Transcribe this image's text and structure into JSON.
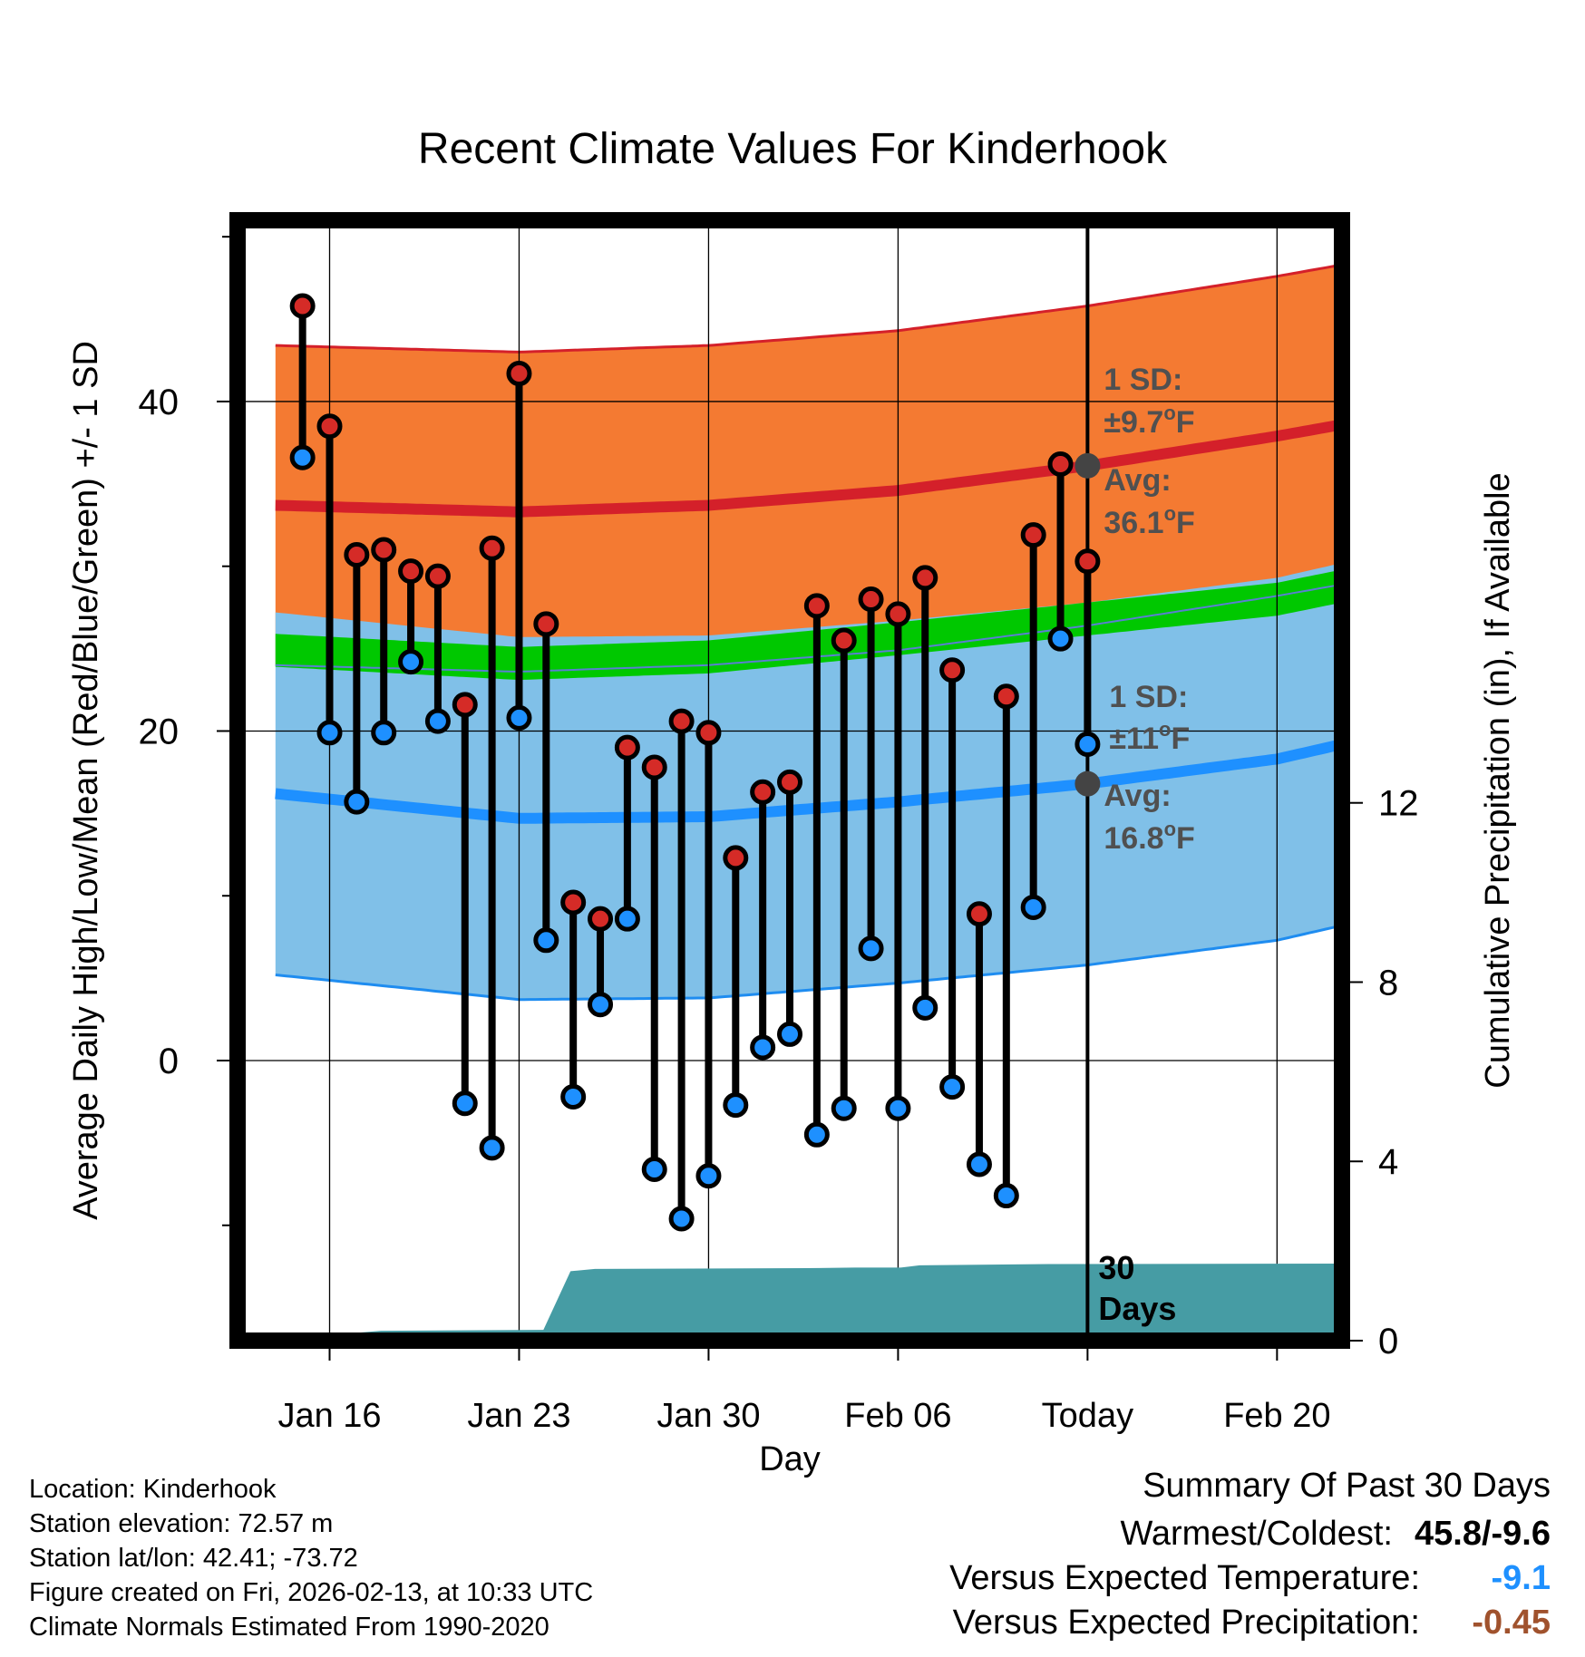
{
  "chart_data": {
    "type": "climate_range",
    "title": "Recent Climate Values For Kinderhook",
    "xlabel": "Day",
    "ylabel": "Average Daily High/Low/Mean (Red/Blue/Green) +/- 1 SD",
    "ylabel_right": "Cumulative Precipitation (in), If Available",
    "ylim": [
      -17,
      51
    ],
    "ylim_right": [
      0,
      25
    ],
    "y_ticks": [
      0,
      20,
      40
    ],
    "y_ticks_right": [
      0,
      4,
      8,
      12
    ],
    "x_range": [
      -1.4,
      39.4
    ],
    "x_ticks": [
      {
        "day": 2,
        "label": "Jan 16"
      },
      {
        "day": 9,
        "label": "Jan 23"
      },
      {
        "day": 16,
        "label": "Jan 30"
      },
      {
        "day": 23,
        "label": "Feb 06"
      },
      {
        "day": 30,
        "label": "Today"
      },
      {
        "day": 37,
        "label": "Feb 20"
      }
    ],
    "today_day": 30,
    "observations": {
      "highs": [
        45.8,
        38.5,
        30.7,
        31.0,
        29.7,
        29.4,
        21.6,
        31.1,
        41.7,
        26.5,
        9.6,
        8.6,
        19.0,
        17.8,
        20.6,
        19.9,
        12.3,
        16.3,
        16.9,
        27.6,
        25.5,
        28.0,
        27.1,
        29.3,
        23.7,
        8.9,
        22.1,
        31.9,
        36.2,
        30.3
      ],
      "lows": [
        36.6,
        19.9,
        15.7,
        19.9,
        24.2,
        20.6,
        -2.6,
        -5.3,
        20.8,
        7.3,
        -2.2,
        3.4,
        8.6,
        -6.6,
        -9.6,
        -7.0,
        -2.7,
        0.8,
        1.6,
        -4.5,
        -2.9,
        6.8,
        -2.9,
        3.2,
        -1.6,
        -6.3,
        -8.2,
        9.3,
        25.6,
        19.2
      ]
    },
    "normals": {
      "high_avg": [
        [
          0,
          33.7
        ],
        [
          9,
          33.3
        ],
        [
          16,
          33.7
        ],
        [
          23,
          34.6
        ],
        [
          30,
          36.1
        ],
        [
          37,
          37.9
        ],
        [
          39.4,
          38.6
        ]
      ],
      "high_sd": 9.7,
      "low_avg": [
        [
          0,
          16.2
        ],
        [
          9,
          14.7
        ],
        [
          16,
          14.8
        ],
        [
          23,
          15.7
        ],
        [
          30,
          16.8
        ],
        [
          37,
          18.3
        ],
        [
          39.4,
          19.2
        ]
      ],
      "low_sd": 11,
      "mean_avg": [
        [
          0,
          24.9
        ],
        [
          9,
          24.1
        ],
        [
          16,
          24.5
        ],
        [
          23,
          25.6
        ],
        [
          30,
          26.8
        ],
        [
          37,
          28.0
        ],
        [
          39.4,
          28.8
        ]
      ]
    },
    "precipitation": [
      [
        1.9,
        0
      ],
      [
        3.1,
        0.18
      ],
      [
        3.9,
        0.22
      ],
      [
        9.9,
        0.24
      ],
      [
        10.9,
        1.55
      ],
      [
        11.8,
        1.6
      ],
      [
        20.1,
        1.62
      ],
      [
        21.4,
        1.63
      ],
      [
        23.1,
        1.63
      ],
      [
        23.8,
        1.68
      ],
      [
        28.6,
        1.71
      ],
      [
        39.4,
        1.72
      ]
    ],
    "annotations": {
      "high_sd_title": "1 SD:",
      "high_sd_value": "±9.7",
      "high_avg_title": "Avg:",
      "high_avg_value": "36.1",
      "low_sd_title": "1 SD:",
      "low_sd_value": "±11",
      "low_avg_title": "Avg:",
      "low_avg_value": "16.8",
      "unit_sup": "o",
      "unit_letter": "F",
      "days_number": "30",
      "days_word": "Days"
    },
    "colors": {
      "high_band": "#f47a32",
      "high_line": "#d4202a",
      "overlap_band": "#98111a",
      "mean_line": "#00c800",
      "low_band": "#80c0e8",
      "low_line": "#1e90ff",
      "low_edge": "#1e8cf0",
      "precip": "#469ca4",
      "marker_high": "#d52b27",
      "marker_low": "#1e90ff",
      "today_marker": "#444444",
      "annotation": "#505050"
    }
  },
  "info": {
    "location": "Location: Kinderhook",
    "elevation": "Station elevation: 72.57 m",
    "latlon": "Station lat/lon: 42.41; -73.72",
    "created": "Figure created on Fri, 2026-02-13, at 10:33 UTC",
    "normals": "Climate Normals Estimated From 1990-2020"
  },
  "summary": {
    "title": "Summary Of Past 30 Days",
    "warmest_label": "Warmest/Coldest:",
    "warmest_value": "45.8/-9.6",
    "temp_label": "Versus Expected Temperature:",
    "temp_value": "-9.1",
    "temp_color": "#1e90ff",
    "precip_label": "Versus Expected Precipitation:",
    "precip_value": "-0.45",
    "precip_color": "#a0522d"
  }
}
